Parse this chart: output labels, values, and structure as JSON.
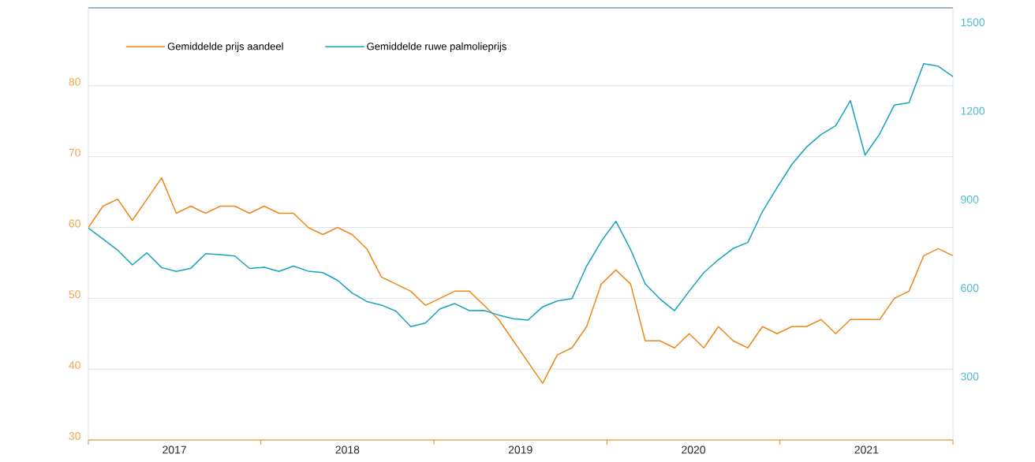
{
  "chart_data": {
    "type": "line",
    "x": [
      "2017-01",
      "2017-02",
      "2017-03",
      "2017-04",
      "2017-05",
      "2017-06",
      "2017-07",
      "2017-08",
      "2017-09",
      "2017-10",
      "2017-11",
      "2017-12",
      "2018-01",
      "2018-02",
      "2018-03",
      "2018-04",
      "2018-05",
      "2018-06",
      "2018-07",
      "2018-08",
      "2018-09",
      "2018-10",
      "2018-11",
      "2018-12",
      "2019-01",
      "2019-02",
      "2019-03",
      "2019-04",
      "2019-05",
      "2019-06",
      "2019-07",
      "2019-08",
      "2019-09",
      "2019-10",
      "2019-11",
      "2019-12",
      "2020-01",
      "2020-02",
      "2020-03",
      "2020-04",
      "2020-05",
      "2020-06",
      "2020-07",
      "2020-08",
      "2020-09",
      "2020-10",
      "2020-11",
      "2020-12",
      "2021-01",
      "2021-02",
      "2021-03",
      "2021-04",
      "2021-05",
      "2021-06",
      "2021-07",
      "2021-08",
      "2021-09",
      "2021-10",
      "2021-11",
      "2021-12"
    ],
    "series": [
      {
        "name": "Gemiddelde prijs aandeel",
        "color": "#f0871a",
        "axis": "y",
        "values": [
          60,
          63,
          64,
          61,
          64,
          67,
          62,
          63,
          62,
          63,
          63,
          62,
          63,
          62,
          62,
          60,
          59,
          60,
          59,
          57,
          53,
          52,
          51,
          49,
          50,
          51,
          51,
          49,
          47,
          44,
          41,
          38,
          42,
          43,
          46,
          52,
          54,
          52,
          44,
          44,
          43,
          45,
          43,
          46,
          44,
          43,
          46,
          45,
          46,
          46,
          47,
          45,
          47,
          47,
          47,
          50,
          51,
          56,
          57,
          56
        ]
      },
      {
        "name": "Gemiddelde ruwe palmolieprijs",
        "color": "#17a2c0",
        "axis": "y2",
        "values": [
          803,
          766,
          728,
          678,
          719,
          669,
          656,
          667,
          716,
          713,
          708,
          666,
          670,
          656,
          674,
          657,
          652,
          626,
          583,
          554,
          542,
          521,
          469,
          481,
          529,
          547,
          523,
          524,
          508,
          496,
          491,
          536,
          556,
          564,
          674,
          758,
          826,
          730,
          614,
          563,
          523,
          589,
          652,
          696,
          734,
          754,
          859,
          940,
          1018,
          1077,
          1120,
          1150,
          1235,
          1050,
          1122,
          1220,
          1228,
          1360,
          1351,
          1316
        ]
      }
    ],
    "xlim": [
      "2017-01",
      "2021-12"
    ],
    "xticks": [
      {
        "value": "2017-01",
        "label": null
      },
      {
        "value": "2017-06-28",
        "label": "2017"
      },
      {
        "value": "2017-12-25",
        "label": null
      },
      {
        "value": "2018-06-22",
        "label": "2018"
      },
      {
        "value": "2018-12-19",
        "label": null
      },
      {
        "value": "2019-06-16",
        "label": "2019"
      },
      {
        "value": "2019-12-13",
        "label": null
      },
      {
        "value": "2020-06-10",
        "label": "2020"
      },
      {
        "value": "2020-12-07",
        "label": null
      },
      {
        "value": "2021-06-04",
        "label": "2021"
      },
      {
        "value": "2021-12",
        "label": null
      }
    ],
    "ylim": [
      30,
      91
    ],
    "yticks": [
      30,
      40,
      50,
      60,
      70,
      80
    ],
    "y2lim": [
      85,
      1549
    ],
    "y2ticks": [
      300,
      600,
      900,
      1200,
      1500
    ],
    "grid": "y",
    "legend": "top left",
    "marker": "none",
    "line_style": "solid"
  }
}
